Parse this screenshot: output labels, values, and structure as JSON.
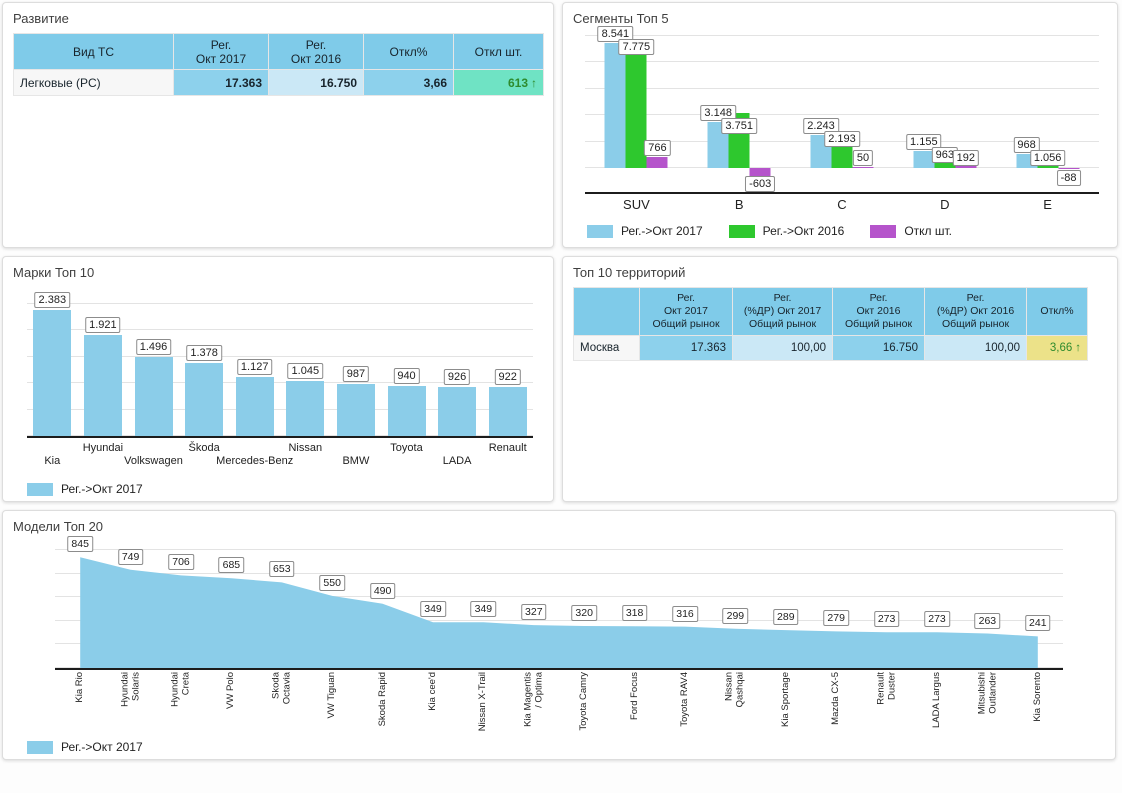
{
  "colors": {
    "series_blue": "#8bcde9",
    "series_green": "#2ec82e",
    "series_purple": "#b554cb",
    "cell_blue_strong": "#8dd1ec",
    "cell_blue_light": "#cbe8f6",
    "header_blue": "#7fcbe9",
    "cell_mint": "#6fe3c4",
    "cell_yellow": "#ece289",
    "positive_green": "#2e8b2e"
  },
  "panels": {
    "development": {
      "title": "Развитие",
      "table": {
        "headers": [
          "Вид ТС",
          "Рег.\nОкт 2017",
          "Рег.\nОкт 2016",
          "Откл%",
          "Откл шт."
        ],
        "row": {
          "cells": [
            "Легковые (PC)",
            "17.363",
            "16.750",
            "3,66",
            "613"
          ],
          "arrow": "↑"
        }
      }
    },
    "segments": {
      "title": "Сегменты Топ 5"
    },
    "brands": {
      "title": "Марки Топ 10"
    },
    "territories": {
      "title": "Топ 10 территорий",
      "table": {
        "headers": [
          "",
          "Рег.\nОкт 2017\nОбщий рынок",
          "Рег.\n(%ДР) Окт 2017\nОбщий рынок",
          "Рег.\nОкт 2016\nОбщий рынок",
          "Рег.\n(%ДР) Окт 2016\nОбщий рынок",
          "Откл%"
        ],
        "row": {
          "cells": [
            "Москва",
            "17.363",
            "100,00",
            "16.750",
            "100,00",
            "3,66"
          ],
          "arrow": "↑"
        }
      }
    },
    "models": {
      "title": "Модели Топ 20"
    }
  },
  "chart_data": [
    {
      "id": "segments",
      "type": "bar",
      "title": "Сегменты Топ 5",
      "categories": [
        "SUV",
        "B",
        "C",
        "D",
        "E"
      ],
      "series": [
        {
          "name": "Рег.->Окт 2017",
          "color_key": "series_blue",
          "values": [
            8541,
            3148,
            2243,
            1155,
            968
          ],
          "labels": [
            "8.541",
            "3.148",
            "2.243",
            "1.155",
            "968"
          ]
        },
        {
          "name": "Рег.->Окт 2016",
          "color_key": "series_green",
          "values": [
            7775,
            3751,
            2193,
            963,
            1056
          ],
          "labels": [
            "7.775",
            "3.751",
            "2.193",
            "963",
            "1.056"
          ]
        },
        {
          "name": "Откл шт.",
          "color_key": "series_purple",
          "values": [
            766,
            -603,
            50,
            192,
            -88
          ],
          "labels": [
            "766",
            "-603",
            "50",
            "192",
            "-88"
          ]
        }
      ],
      "ylim": [
        -1000,
        9000
      ],
      "grid": true,
      "legend_position": "bottom"
    },
    {
      "id": "brands",
      "type": "bar",
      "title": "Марки Топ 10",
      "categories": [
        "Kia",
        "Hyundai",
        "Volkswagen",
        "Škoda",
        "Mercedes-Benz",
        "Nissan",
        "BMW",
        "Toyota",
        "LADA",
        "Renault"
      ],
      "series": [
        {
          "name": "Рег.->Окт 2017",
          "color_key": "series_blue",
          "values": [
            2383,
            1921,
            1496,
            1378,
            1127,
            1045,
            987,
            940,
            926,
            922
          ],
          "labels": [
            "2.383",
            "1.921",
            "1.496",
            "1.378",
            "1.127",
            "1.045",
            "987",
            "940",
            "926",
            "922"
          ]
        }
      ],
      "ylim": [
        0,
        2500
      ],
      "grid": true,
      "legend_position": "bottom"
    },
    {
      "id": "models",
      "type": "area",
      "title": "Модели Топ 20",
      "categories": [
        "Kia Rio",
        "Hyundai Solaris",
        "Hyundai Creta",
        "VW Polo",
        "Skoda Octavia",
        "VW Tiguan",
        "Skoda Rapid",
        "Kia cee'd",
        "Nissan X-Trail",
        "Kia Magentis / Optima",
        "Toyota Camry",
        "Ford Focus",
        "Toyota RAV4",
        "Nissan Qashqai",
        "Kia Sportage",
        "Mazda CX-5",
        "Renault Duster",
        "LADA Largus",
        "Mitsubishi Outlander",
        "Kia Sorento"
      ],
      "series": [
        {
          "name": "Рег.->Окт 2017",
          "color_key": "series_blue",
          "values": [
            845,
            749,
            706,
            685,
            653,
            550,
            490,
            349,
            349,
            327,
            320,
            318,
            316,
            299,
            289,
            279,
            273,
            273,
            263,
            241
          ],
          "labels": [
            "845",
            "749",
            "706",
            "685",
            "653",
            "550",
            "490",
            "349",
            "349",
            "327",
            "320",
            "318",
            "316",
            "299",
            "289",
            "279",
            "273",
            "273",
            "263",
            "241"
          ]
        }
      ],
      "ylim": [
        0,
        900
      ],
      "grid": true,
      "legend_position": "bottom"
    }
  ]
}
